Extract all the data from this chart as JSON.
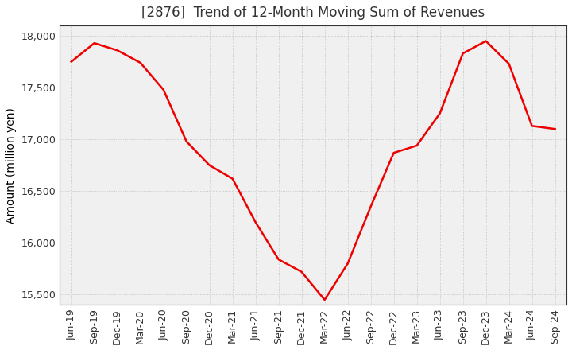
{
  "title": "[2876]  Trend of 12-Month Moving Sum of Revenues",
  "ylabel": "Amount (million yen)",
  "line_color": "#ee0000",
  "background_color": "#ffffff",
  "plot_background": "#f0f0f0",
  "grid_color": "#bbbbbb",
  "x_labels": [
    "Jun-19",
    "Sep-19",
    "Dec-19",
    "Mar-20",
    "Jun-20",
    "Sep-20",
    "Dec-20",
    "Mar-21",
    "Jun-21",
    "Sep-21",
    "Dec-21",
    "Mar-22",
    "Jun-22",
    "Sep-22",
    "Dec-22",
    "Mar-23",
    "Jun-23",
    "Sep-23",
    "Dec-23",
    "Mar-24",
    "Jun-24",
    "Sep-24"
  ],
  "values": [
    17750,
    17930,
    17860,
    17740,
    17480,
    16980,
    16750,
    16620,
    16200,
    15840,
    15720,
    15450,
    15800,
    16350,
    16870,
    16940,
    17250,
    17830,
    17950,
    17730,
    17130,
    17100
  ],
  "ylim": [
    15400,
    18100
  ],
  "yticks": [
    15500,
    16000,
    16500,
    17000,
    17500,
    18000
  ],
  "title_fontsize": 12,
  "label_fontsize": 10,
  "tick_fontsize": 9,
  "line_width": 1.8
}
